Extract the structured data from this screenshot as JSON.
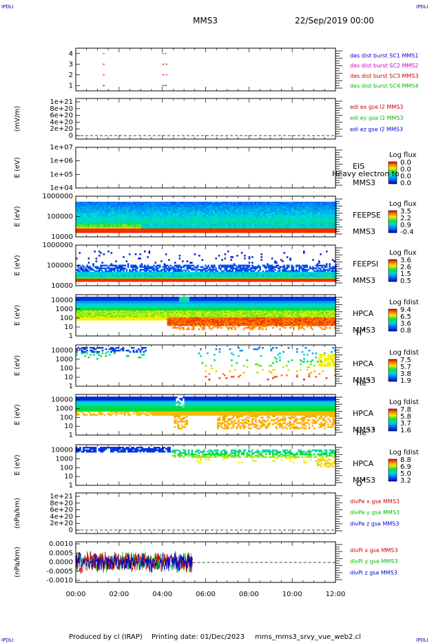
{
  "header": {
    "left_logo": "IPDLI",
    "right_logo": "IPDLI",
    "mission": "MMS3",
    "date": "22/Sep/2019 00:00"
  },
  "footer": {
    "left_logo": "IPDLI",
    "right_logo": "IPDLI",
    "produced_by": "Produced by cl (IRAP)",
    "printing_date": "Printing date: 01/Dec/2023",
    "script_name": "mms_mms3_srvy_vue_web2.cl"
  },
  "time_axis": {
    "ticks": [
      "00:00",
      "02:00",
      "04:00",
      "06:00",
      "08:00",
      "10:00",
      "12:00"
    ],
    "range_hours": [
      0,
      12
    ]
  },
  "colors": {
    "mms1": "#0000cc",
    "mms2": "#cc00cc",
    "mms3": "#cc0000",
    "mms4": "#00bb00"
  },
  "chart_data": [
    {
      "type": "scatter",
      "id": "burst",
      "ylim": [
        0.5,
        4.5
      ],
      "yticks": [
        "1",
        "2",
        "3",
        "4"
      ],
      "ylabel": "",
      "legend": [
        {
          "text": "des dist burst SC1 MMS1",
          "color": "#0000cc"
        },
        {
          "text": "des dist burst SC2 MMS2",
          "color": "#cc00cc"
        },
        {
          "text": "des dist burst SC3 MMS3",
          "color": "#cc0000"
        },
        {
          "text": "des dist burst SC4 MMS4",
          "color": "#00bb00"
        }
      ],
      "series": [
        {
          "sc": 4,
          "color": "#00bb00",
          "x": [
            1.25,
            4.0,
            4.12
          ]
        },
        {
          "sc": 3,
          "color": "#cc0000",
          "x": [
            1.25,
            4.0,
            4.15
          ]
        },
        {
          "sc": 2,
          "color": "#cc00cc",
          "x": [
            1.25,
            4.0,
            4.15
          ]
        },
        {
          "sc": 1,
          "color": "#0000cc",
          "x": [
            1.25,
            4.0,
            4.12
          ]
        }
      ]
    },
    {
      "type": "line",
      "id": "edi",
      "ylabel": "(mV/m)",
      "yticks": [
        "1e+21",
        "8e+20",
        "6e+20",
        "4e+20",
        "2e+20",
        "0"
      ],
      "ylim": [
        0,
        1e+21
      ],
      "zero_line": true,
      "legend": [
        {
          "text": "edi ex gse l2 MMS3",
          "color": "#cc0000"
        },
        {
          "text": "edi ey gse l2 MMS3",
          "color": "#00bb00"
        },
        {
          "text": "edi ez gse l2 MMS3",
          "color": "#0000cc"
        }
      ]
    },
    {
      "type": "heatmap",
      "id": "eis",
      "ylabel": "E (eV)",
      "yticks": [
        "1e+07",
        "1e+06",
        "1e+05",
        "1e+04"
      ],
      "yscale": "log",
      "ylim": [
        10000,
        10000000
      ],
      "instrument": "EIS",
      "species": "Heavy electron to",
      "spacecraft": "MMS3",
      "colorbar_label": "Log flux",
      "colorbar_ticks": [
        "0.0",
        "0.0",
        "0.0",
        "0.0"
      ],
      "data_present": false
    },
    {
      "type": "heatmap",
      "id": "feepse",
      "ylabel": "E (eV)",
      "yticks": [
        "1000000",
        "100000",
        "10000"
      ],
      "yscale": "log",
      "ylim": [
        10000,
        1000000
      ],
      "instrument": "FEEPSE",
      "spacecraft": "MMS3",
      "colorbar_label": "Log flux",
      "colorbar_ticks": [
        "3.5",
        "2.2",
        "0.9",
        "-0.4"
      ]
    },
    {
      "type": "heatmap",
      "id": "feepsi",
      "ylabel": "E (eV)",
      "yticks": [
        "1000000",
        "100000",
        "10000"
      ],
      "yscale": "log",
      "ylim": [
        10000,
        1000000
      ],
      "instrument": "FEEPSI",
      "spacecraft": "MMS3",
      "colorbar_label": "Log flux",
      "colorbar_ticks": [
        "3.6",
        "2.6",
        "1.5",
        "0.5"
      ]
    },
    {
      "type": "heatmap",
      "id": "hpca_h",
      "ylabel": "E (eV)",
      "yticks": [
        "10000",
        "1000",
        "100",
        "10",
        "1"
      ],
      "yscale": "log",
      "ylim": [
        1,
        40000
      ],
      "instrument": "HPCA",
      "spacecraft": "MMS3",
      "species": "H",
      "charge": "+",
      "colorbar_label": "Log fdist",
      "colorbar_ticks": [
        "9.4",
        "6.5",
        "3.6",
        "0.8"
      ]
    },
    {
      "type": "heatmap",
      "id": "hpca_he",
      "ylabel": "E (eV)",
      "yticks": [
        "10000",
        "1000",
        "100",
        "10",
        "1"
      ],
      "yscale": "log",
      "ylim": [
        1,
        40000
      ],
      "instrument": "HPCA",
      "spacecraft": "MMS3",
      "species": "He",
      "charge": "+",
      "colorbar_label": "Log fdist",
      "colorbar_ticks": [
        "7.5",
        "5.7",
        "3.8",
        "1.9"
      ]
    },
    {
      "type": "heatmap",
      "id": "hpca_hepp",
      "ylabel": "E (eV)",
      "yticks": [
        "10000",
        "1000",
        "100",
        "10",
        "1"
      ],
      "yscale": "log",
      "ylim": [
        1,
        40000
      ],
      "instrument": "HPCA",
      "spacecraft": "MMS3",
      "species": "He",
      "charge": "++",
      "colorbar_label": "Log fdist",
      "colorbar_ticks": [
        "7.8",
        "5.8",
        "3.7",
        "1.6"
      ]
    },
    {
      "type": "heatmap",
      "id": "hpca_o",
      "ylabel": "E (eV)",
      "yticks": [
        "10000",
        "1000",
        "100",
        "10",
        "1"
      ],
      "yscale": "log",
      "ylim": [
        1,
        40000
      ],
      "instrument": "HPCA",
      "spacecraft": "MMS3",
      "species": "O",
      "charge": "+",
      "colorbar_label": "Log fdist",
      "colorbar_ticks": [
        "8.8",
        "6.9",
        "5.0",
        "3.2"
      ]
    },
    {
      "type": "line",
      "id": "divpe",
      "ylabel": "(nPa/km)",
      "yticks": [
        "1e+21",
        "8e+20",
        "6e+20",
        "4e+20",
        "2e+20",
        "0"
      ],
      "ylim": [
        0,
        1e+21
      ],
      "zero_line": true,
      "legend": [
        {
          "text": "divPe x gse MMS3",
          "color": "#cc0000"
        },
        {
          "text": "divPe y gse MMS3",
          "color": "#00bb00"
        },
        {
          "text": "divPe z gse MMS3",
          "color": "#0000cc"
        }
      ]
    },
    {
      "type": "line",
      "id": "divpi",
      "ylabel": "(nPa/km)",
      "yticks": [
        "0.0010",
        "0.0005",
        "0.0000",
        "-0.0005",
        "-0.0010"
      ],
      "ylim": [
        -0.0012,
        0.0012
      ],
      "zero_line": true,
      "data_end_hour": 5.4,
      "legend": [
        {
          "text": "divPi x gse MMS3",
          "color": "#cc0000"
        },
        {
          "text": "divPi y gse MMS3",
          "color": "#00bb00"
        },
        {
          "text": "divPi z gse MMS3",
          "color": "#0000cc"
        }
      ]
    }
  ]
}
